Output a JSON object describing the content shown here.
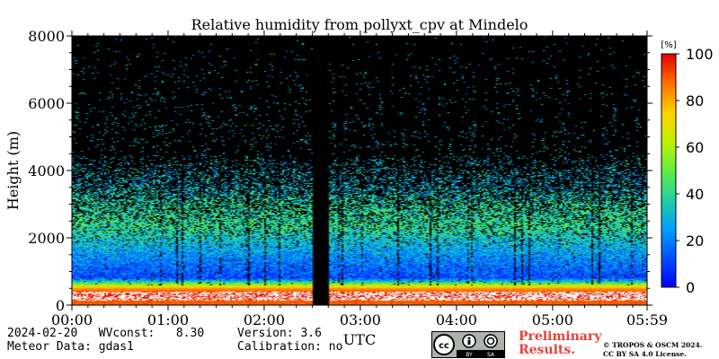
{
  "chart_data": {
    "type": "heatmap",
    "title": "Relative humidity from pollyxt_cpv at Mindelo",
    "xlabel": "UTC",
    "ylabel": "Height (m)",
    "x_tick_labels": [
      "00:00",
      "01:00",
      "02:00",
      "03:00",
      "04:00",
      "05:00",
      "05:59"
    ],
    "x_range_hours": [
      0,
      5.983
    ],
    "y_ticks": [
      0,
      2000,
      4000,
      6000,
      8000
    ],
    "ylim": [
      0,
      8000
    ],
    "colorbar": {
      "unit": "[%]",
      "ticks": [
        0,
        20,
        40,
        60,
        80,
        100
      ],
      "range": [
        0,
        100
      ],
      "colormap": "jet"
    },
    "data_gap_hours": [
      2.5,
      2.68
    ],
    "profile_summary": [
      {
        "height_m": 100,
        "rh_percent": 90
      },
      {
        "height_m": 300,
        "rh_percent": 100
      },
      {
        "height_m": 500,
        "rh_percent": 82
      },
      {
        "height_m": 800,
        "rh_percent": 12
      },
      {
        "height_m": 1200,
        "rh_percent": 18
      },
      {
        "height_m": 1800,
        "rh_percent": 30
      },
      {
        "height_m": 2300,
        "rh_percent": 40
      },
      {
        "height_m": 3000,
        "rh_percent": 38
      },
      {
        "height_m": 3600,
        "rh_percent": 30
      }
    ]
  },
  "info": {
    "date_wv": "2024-02-20   WVconst:   8.30",
    "meteor": "Meteor Data: gdas1",
    "version": "Version: 3.6",
    "calibration": "Calibration: no",
    "preliminary_line1": "Preliminary",
    "preliminary_line2": "Results.",
    "copyright_line1": "© TROPOS & OSCM 2024.",
    "copyright_line2": "CC BY SA 4.0 License.",
    "license_badge": "cc-by-sa-badge",
    "license_by": "BY",
    "license_sa": "SA"
  }
}
